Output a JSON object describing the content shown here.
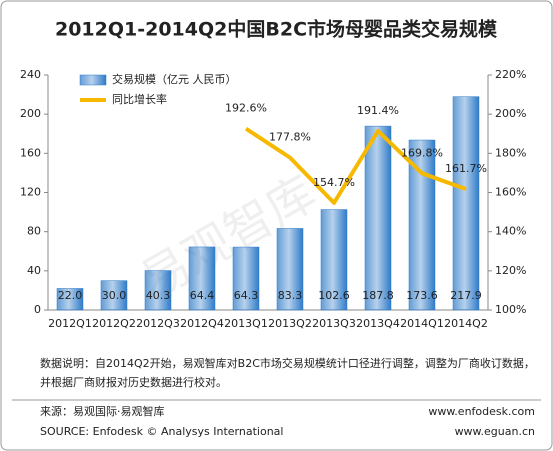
{
  "chart_data": {
    "type": "bar",
    "title": "2012Q1-2014Q2中国B2C市场母婴品类交易规模",
    "watermark": "易观智库",
    "categories": [
      "2012Q1",
      "2012Q2",
      "2012Q3",
      "2012Q4",
      "2013Q1",
      "2013Q2",
      "2013Q3",
      "2013Q4",
      "2014Q1",
      "2014Q2"
    ],
    "series": [
      {
        "name": "交易规模（亿元 人民币）",
        "color": "#2f7bc8",
        "type": "bar",
        "values": [
          22.0,
          30.0,
          40.3,
          64.4,
          64.3,
          83.3,
          102.6,
          187.8,
          173.6,
          217.9
        ],
        "value_labels": [
          "22.0",
          "30.0",
          "40.3",
          "64.4",
          "64.3",
          "83.3",
          "102.6",
          "187.8",
          "173.6",
          "217.9"
        ]
      },
      {
        "name": "同比增长率",
        "color": "#f7b800",
        "type": "line",
        "axis": "y2",
        "values": [
          null,
          null,
          null,
          null,
          192.6,
          177.8,
          154.7,
          191.4,
          169.8,
          161.7
        ],
        "value_labels": [
          null,
          null,
          null,
          null,
          "192.6%",
          "177.8%",
          "154.7%",
          "191.4%",
          "169.8%",
          "161.7%"
        ]
      }
    ],
    "ylim": [
      0,
      240
    ],
    "yticks": [
      0,
      40,
      80,
      120,
      160,
      200,
      240
    ],
    "y2lim": [
      100,
      220
    ],
    "y2ticks": [
      {
        "value": 100,
        "label": "100%"
      },
      {
        "value": 120,
        "label": "120%"
      },
      {
        "value": 140,
        "label": "140%"
      },
      {
        "value": 160,
        "label": "160%"
      },
      {
        "value": 180,
        "label": "180%"
      },
      {
        "value": 200,
        "label": "200%"
      },
      {
        "value": 220,
        "label": "220%"
      }
    ],
    "notes": [
      "数据说明：自2014Q2开始，易观智库对B2C市场交易规模统计口径进行调整，调整为厂商收订数据，",
      "并根据厂商财报对历史数据进行校对。"
    ],
    "source": "来源：易观国际·易观智库",
    "source_en": "SOURCE: Enfodesk © Analysys International",
    "site1": "www.enfodesk.com",
    "site2": "www.eguan.cn"
  }
}
